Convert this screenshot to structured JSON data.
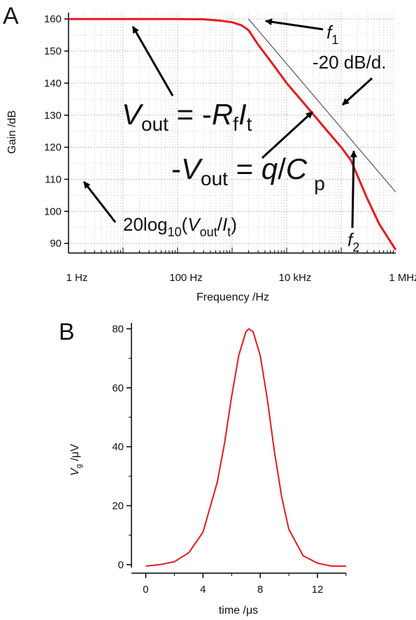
{
  "panel_labels": [
    "A",
    "B"
  ],
  "chart_data": [
    {
      "type": "line",
      "panel": "A",
      "xlabel": "Frequency /Hz",
      "ylabel": "Gain /dB",
      "x_scale": "log",
      "xlim": [
        1,
        1000000
      ],
      "ylim": [
        87,
        162
      ],
      "x_tick_values": [
        1,
        100,
        10000,
        1000000
      ],
      "x_tick_labels": [
        "1 Hz",
        "100 Hz",
        "10 kHz",
        "1 MHz"
      ],
      "y_ticks": [
        90,
        100,
        110,
        120,
        130,
        140,
        150,
        160
      ],
      "grid": true,
      "series": [
        {
          "color": "#e8191f",
          "x": [
            1,
            10,
            100,
            300,
            600,
            1000,
            1500,
            2000,
            3000,
            5000,
            10000,
            20000,
            50000,
            100000,
            150000,
            200000,
            300000,
            500000,
            1000000
          ],
          "y": [
            160,
            160,
            160,
            159.9,
            159.5,
            159,
            158,
            156.5,
            152,
            147,
            140,
            134,
            126,
            120,
            116,
            111,
            104,
            96,
            88
          ]
        },
        {
          "color": "#555555",
          "x": [
            2000,
            1000000
          ],
          "y": [
            160,
            106
          ]
        }
      ],
      "annotations": {
        "eq1": {
          "text": "V",
          "sub": "out",
          "mid": " = -",
          "r": "R",
          "rsub": "f",
          "i": "I",
          "isub": "t"
        },
        "eq2": {
          "pre": "-",
          "text": "V",
          "sub": "out",
          "mid": " = ",
          "q": "q",
          "slash": "/",
          "c": "C",
          "csub": "p"
        },
        "eq3": {
          "pre": "20log",
          "sub10": "10",
          "open": "(",
          "v": "V",
          "vsub": "out",
          "slash": "/",
          "i": "I",
          "isub": "t",
          "close": ")"
        },
        "slope": "-20 dB/d.",
        "f1": {
          "f": "f",
          "sub": "1"
        },
        "f2": {
          "f": "f",
          "sub": "2"
        }
      }
    },
    {
      "type": "line",
      "panel": "B",
      "xlabel": "time /μs",
      "ylabel": "V",
      "ylabel_sub": "g",
      "ylabel_unit": " /μV",
      "xlim": [
        -1,
        14
      ],
      "ylim": [
        -1,
        82
      ],
      "x_ticks": [
        0,
        4,
        8,
        12
      ],
      "y_ticks": [
        0,
        20,
        40,
        60,
        80
      ],
      "grid": false,
      "series": [
        {
          "color": "#e8191f",
          "x": [
            0,
            1,
            2,
            3,
            4,
            5,
            5.5,
            6,
            6.5,
            7,
            7.2,
            7.5,
            8,
            8.5,
            9,
            9.5,
            10,
            11,
            12,
            13,
            14
          ],
          "y": [
            -0.5,
            0,
            1,
            4,
            11,
            28,
            41,
            57,
            71,
            79,
            80,
            79,
            71,
            56,
            38,
            23,
            12,
            3,
            0.5,
            -0.5,
            -0.5
          ]
        }
      ]
    }
  ]
}
